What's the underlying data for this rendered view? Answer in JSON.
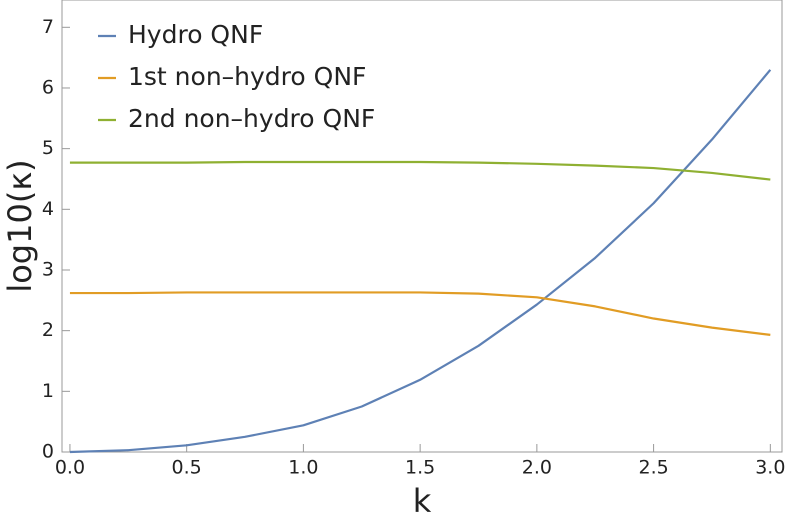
{
  "chart_data": {
    "type": "line",
    "xlabel": "k",
    "ylabel": "log10(κ)",
    "x": [
      0,
      0.25,
      0.5,
      0.75,
      1.0,
      1.25,
      1.5,
      1.75,
      2.0,
      2.25,
      2.5,
      2.75,
      3.0
    ],
    "series": [
      {
        "name": "Hydro QNF",
        "color": "#5e81b5",
        "values": [
          0,
          0.03,
          0.11,
          0.25,
          0.44,
          0.75,
          1.19,
          1.75,
          2.43,
          3.2,
          4.1,
          5.15,
          6.3
        ]
      },
      {
        "name": "1st non–hydro QNF",
        "color": "#e19c24",
        "values": [
          2.62,
          2.62,
          2.63,
          2.63,
          2.63,
          2.63,
          2.63,
          2.61,
          2.55,
          2.4,
          2.2,
          2.05,
          1.93
        ]
      },
      {
        "name": "2nd non–hydro QNF",
        "color": "#8fb032",
        "values": [
          4.77,
          4.77,
          4.77,
          4.78,
          4.78,
          4.78,
          4.78,
          4.77,
          4.75,
          4.72,
          4.68,
          4.6,
          4.49
        ]
      }
    ],
    "xlim": [
      -0.034,
      3.05
    ],
    "ylim": [
      0,
      7.45
    ],
    "xticks": [
      {
        "value": 0,
        "label": "0.0"
      },
      0.5,
      {
        "value": 1,
        "label": "1.0"
      },
      1.5,
      {
        "value": 2,
        "label": "2.0"
      },
      2.5,
      {
        "value": 3,
        "label": "3.0"
      }
    ],
    "yticks": [
      0,
      1,
      2,
      3,
      4,
      5,
      6,
      7
    ],
    "legend": "upper-left"
  }
}
